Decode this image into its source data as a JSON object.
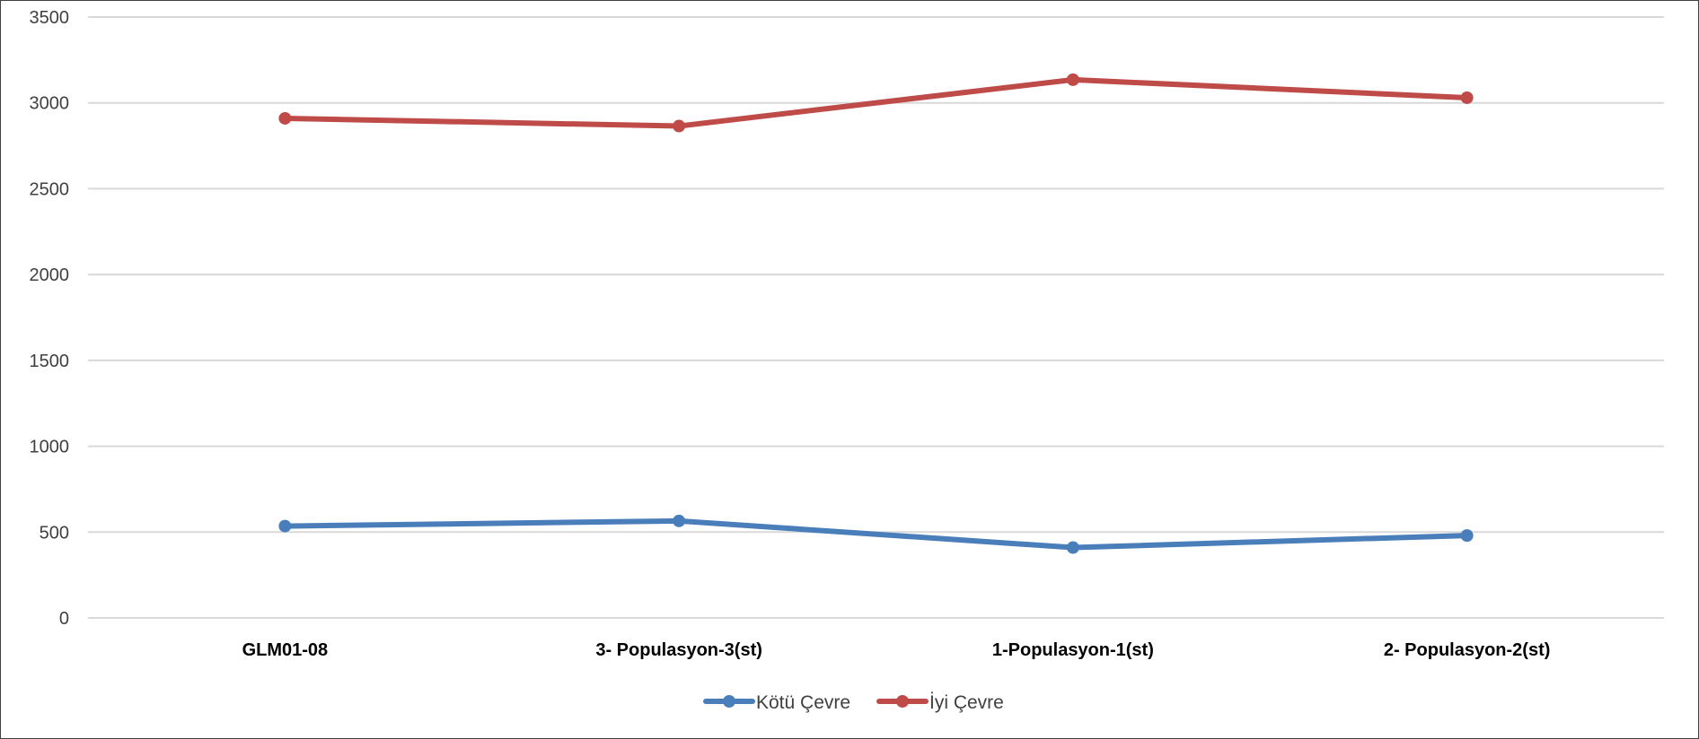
{
  "chart_data": {
    "type": "line",
    "categories": [
      "GLM01-08",
      "3- Populasyon-3(st)",
      "1-Populasyon-1(st)",
      "2- Populasyon-2(st)"
    ],
    "series": [
      {
        "name": "Kötü Çevre",
        "values": [
          535,
          565,
          410,
          480
        ],
        "color": "#4a7ebb"
      },
      {
        "name": "İyi Çevre",
        "values": [
          2910,
          2865,
          3135,
          3030
        ],
        "color": "#be4b48"
      }
    ],
    "ylim": [
      0,
      3500
    ],
    "yticks": [
      0,
      500,
      1000,
      1500,
      2000,
      2500,
      3000,
      3500
    ],
    "grid": true,
    "legend": "bottom-center",
    "title": "",
    "xlabel": "",
    "ylabel": ""
  }
}
